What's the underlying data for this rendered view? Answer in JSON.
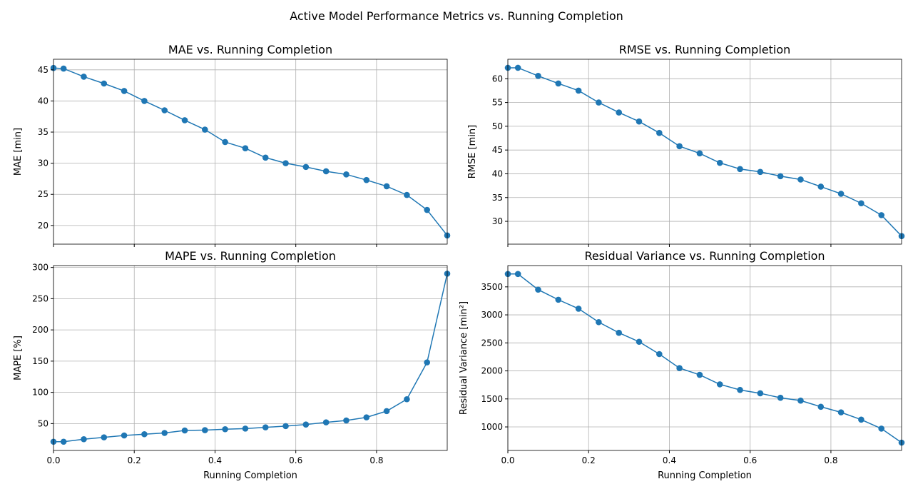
{
  "figure_title": "Active Model Performance Metrics vs. Running Completion",
  "chart_data": [
    {
      "type": "line",
      "title": "MAE vs. Running Completion",
      "xlabel": "",
      "ylabel": "MAE [min]",
      "xlim": [
        0,
        0.975
      ],
      "ylim": [
        17.0,
        46.7
      ],
      "x_ticks": [
        0,
        0.2,
        0.4,
        0.6,
        0.8
      ],
      "x_tick_labels": [
        "",
        "",
        "",
        "",
        ""
      ],
      "y_ticks": [
        20,
        25,
        30,
        35,
        40,
        45
      ],
      "y_tick_labels": [
        "20",
        "25",
        "30",
        "35",
        "40",
        "45"
      ],
      "grid": true,
      "color": "#1f77b4",
      "x": [
        0,
        0.025,
        0.075,
        0.125,
        0.175,
        0.225,
        0.275,
        0.325,
        0.375,
        0.425,
        0.475,
        0.525,
        0.575,
        0.625,
        0.675,
        0.725,
        0.775,
        0.825,
        0.875,
        0.925,
        0.975
      ],
      "y": [
        45.3,
        45.2,
        43.9,
        42.8,
        41.6,
        40.0,
        38.5,
        36.9,
        35.4,
        33.4,
        32.4,
        30.9,
        30.0,
        29.4,
        28.7,
        28.2,
        27.3,
        26.3,
        24.9,
        22.5,
        18.4
      ]
    },
    {
      "type": "line",
      "title": "RMSE vs. Running Completion",
      "xlabel": "",
      "ylabel": "RMSE [min]",
      "xlim": [
        0,
        0.975
      ],
      "ylim": [
        25.2,
        64.1
      ],
      "x_ticks": [
        0,
        0.2,
        0.4,
        0.6,
        0.8
      ],
      "x_tick_labels": [
        "",
        "",
        "",
        "",
        ""
      ],
      "y_ticks": [
        30,
        35,
        40,
        45,
        50,
        55,
        60
      ],
      "y_tick_labels": [
        "30",
        "35",
        "40",
        "45",
        "50",
        "55",
        "60"
      ],
      "grid": true,
      "color": "#1f77b4",
      "x": [
        0,
        0.025,
        0.075,
        0.125,
        0.175,
        0.225,
        0.275,
        0.325,
        0.375,
        0.425,
        0.475,
        0.525,
        0.575,
        0.625,
        0.675,
        0.725,
        0.775,
        0.825,
        0.875,
        0.925,
        0.975
      ],
      "y": [
        62.3,
        62.3,
        60.6,
        59.0,
        57.5,
        55.0,
        52.9,
        51.0,
        48.6,
        45.8,
        44.3,
        42.3,
        41.0,
        40.4,
        39.5,
        38.8,
        37.3,
        35.8,
        33.8,
        31.3,
        26.9
      ]
    },
    {
      "type": "line",
      "title": "MAPE vs. Running Completion",
      "xlabel": "Running Completion",
      "ylabel": "MAPE [%]",
      "xlim": [
        0,
        0.975
      ],
      "ylim": [
        7.0,
        303.0
      ],
      "x_ticks": [
        0,
        0.2,
        0.4,
        0.6,
        0.8
      ],
      "x_tick_labels": [
        "0.0",
        "0.2",
        "0.4",
        "0.6",
        "0.8"
      ],
      "y_ticks": [
        50,
        100,
        150,
        200,
        250,
        300
      ],
      "y_tick_labels": [
        "50",
        "100",
        "150",
        "200",
        "250",
        "300"
      ],
      "grid": true,
      "color": "#1f77b4",
      "x": [
        0,
        0.025,
        0.075,
        0.125,
        0.175,
        0.225,
        0.275,
        0.325,
        0.375,
        0.425,
        0.475,
        0.525,
        0.575,
        0.625,
        0.675,
        0.725,
        0.775,
        0.825,
        0.875,
        0.925,
        0.975
      ],
      "y": [
        21,
        21,
        25,
        28,
        31,
        33,
        35,
        39,
        39.5,
        41,
        42,
        44,
        46,
        48.5,
        52,
        55,
        60,
        70,
        89,
        148,
        290
      ]
    },
    {
      "type": "line",
      "title": "Residual Variance vs. Running Completion",
      "xlabel": "Running Completion",
      "ylabel": "Residual Variance [min²]",
      "xlim": [
        0,
        0.975
      ],
      "ylim": [
        580,
        3880
      ],
      "x_ticks": [
        0,
        0.2,
        0.4,
        0.6,
        0.8
      ],
      "x_tick_labels": [
        "0.0",
        "0.2",
        "0.4",
        "0.6",
        "0.8"
      ],
      "y_ticks": [
        1000,
        1500,
        2000,
        2500,
        3000,
        3500
      ],
      "y_tick_labels": [
        "1000",
        "1500",
        "2000",
        "2500",
        "3000",
        "3500"
      ],
      "grid": true,
      "color": "#1f77b4",
      "x": [
        0,
        0.025,
        0.075,
        0.125,
        0.175,
        0.225,
        0.275,
        0.325,
        0.375,
        0.425,
        0.475,
        0.525,
        0.575,
        0.625,
        0.675,
        0.725,
        0.775,
        0.825,
        0.875,
        0.925,
        0.975
      ],
      "y": [
        3730,
        3730,
        3450,
        3270,
        3110,
        2870,
        2680,
        2520,
        2300,
        2050,
        1930,
        1760,
        1660,
        1600,
        1520,
        1470,
        1360,
        1260,
        1130,
        970,
        720
      ]
    }
  ]
}
